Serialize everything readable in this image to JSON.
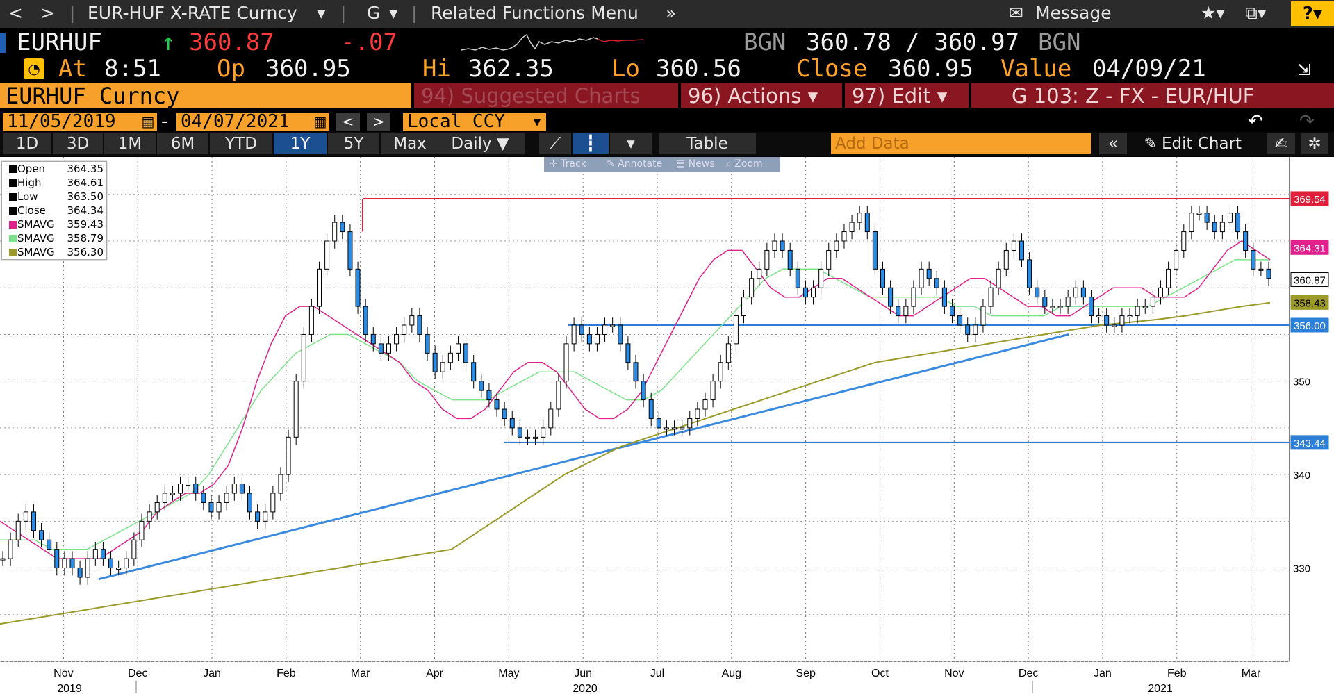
{
  "nav": {
    "back": "<",
    "forward": ">",
    "security_menu": "EUR-HUF X-RATE Curncy",
    "function": "G",
    "related": "Related Functions Menu",
    "message": "Message",
    "help": "?"
  },
  "quote": {
    "ticker": "EURHUF",
    "last": "360.87",
    "change": "-.07",
    "bid_src": "BGN",
    "bid_ask": "360.78 / 360.97",
    "ask_src": "BGN",
    "at_label": "At",
    "time": "8:51",
    "op_label": "Op",
    "open": "360.95",
    "hi_label": "Hi",
    "high": "362.35",
    "lo_label": "Lo",
    "low": "360.56",
    "close_label": "Close",
    "close": "360.95",
    "value_label": "Value",
    "value_date": "04/09/21"
  },
  "toolbar": {
    "security": "EURHUF Curncy",
    "suggested": "94) Suggested Charts",
    "actions": "96) Actions ▾",
    "edit": "97) Edit ▾",
    "chart_title": "G 103: Z - FX - EUR/HUF"
  },
  "dates": {
    "start": "11/05/2019",
    "dash": "-",
    "end": "04/07/2021",
    "currency": "Local CCY"
  },
  "periods": [
    "1D",
    "3D",
    "1M",
    "6M",
    "YTD",
    "1Y",
    "5Y",
    "Max"
  ],
  "selected_period": "1Y",
  "frequency": "Daily ▼",
  "table_label": "Table",
  "add_data_placeholder": "Add Data",
  "edit_chart": "Edit Chart",
  "tools": [
    "Track",
    "Annotate",
    "News",
    "Zoom"
  ],
  "legend": [
    {
      "label": "Open",
      "value": "364.35",
      "color": "#000000"
    },
    {
      "label": "High",
      "value": "364.61",
      "color": "#000000"
    },
    {
      "label": "Low",
      "value": "363.50",
      "color": "#000000"
    },
    {
      "label": "Close",
      "value": "364.34",
      "color": "#000000"
    },
    {
      "label": "SMAVG",
      "value": "359.43",
      "color": "#e0208c"
    },
    {
      "label": "SMAVG",
      "value": "358.79",
      "color": "#7de38a"
    },
    {
      "label": "SMAVG",
      "value": "356.30",
      "color": "#9b9a2a"
    }
  ],
  "chart_data": {
    "type": "line",
    "ylim": [
      320,
      374
    ],
    "y_ticks": [
      330,
      340,
      350
    ],
    "x_months": [
      "Nov",
      "Dec",
      "Jan",
      "Feb",
      "Mar",
      "Apr",
      "May",
      "Jun",
      "Jul",
      "Aug",
      "Sep",
      "Oct",
      "Nov",
      "Dec",
      "Jan",
      "Feb",
      "Mar"
    ],
    "x_years": [
      "2019",
      "2020",
      "2021"
    ],
    "right_labels": [
      {
        "value": 369.54,
        "text": "369.54",
        "color": "#e0203a"
      },
      {
        "value": 364.31,
        "text": "364.31",
        "color": "#e0208c"
      },
      {
        "value": 360.87,
        "text": "360.87",
        "color": "#000000"
      },
      {
        "value": 358.43,
        "text": "358.43",
        "color": "#9b9a2a"
      },
      {
        "value": 356.0,
        "text": "356.00",
        "color": "#2b7fd6"
      },
      {
        "value": 343.44,
        "text": "343.44",
        "color": "#2b7fd6"
      }
    ],
    "price_series": [
      331,
      333,
      335,
      336,
      334,
      333,
      332,
      330,
      331,
      330,
      329,
      331,
      332,
      331,
      330,
      330,
      331,
      333,
      335,
      336,
      337,
      338,
      338,
      339,
      339,
      338,
      337,
      336,
      337,
      338,
      339,
      338,
      336,
      335,
      336,
      338,
      340,
      344,
      350,
      355,
      358,
      362,
      365,
      367,
      366,
      362,
      358,
      355,
      354,
      353,
      354,
      355,
      356,
      357,
      355,
      353,
      351,
      352,
      353,
      354,
      352,
      350,
      349,
      348,
      347,
      346,
      345,
      344,
      344,
      344,
      345,
      347,
      350,
      354,
      356,
      355,
      354,
      355,
      356,
      356,
      354,
      352,
      350,
      348,
      346,
      345,
      345,
      345,
      345,
      346,
      347,
      348,
      350,
      352,
      354,
      357,
      359,
      361,
      362,
      364,
      365,
      364,
      362,
      360,
      359,
      360,
      362,
      364,
      365,
      366,
      367,
      368,
      366,
      362,
      360,
      358,
      357,
      358,
      360,
      362,
      361,
      360,
      358,
      357,
      356,
      355,
      356,
      358,
      360,
      362,
      364,
      365,
      363,
      360,
      359,
      358,
      358,
      358,
      359,
      360,
      359,
      357,
      357,
      356,
      356,
      357,
      357,
      358,
      358,
      359,
      360,
      362,
      364,
      366,
      368,
      368,
      367,
      366,
      367,
      368,
      366,
      364,
      362,
      362,
      361
    ],
    "smavg_pink": [
      335,
      334,
      333,
      332,
      331,
      331,
      331,
      331,
      332,
      333,
      334,
      336,
      337,
      338,
      338,
      339,
      341,
      345,
      350,
      354,
      357,
      358,
      358,
      357,
      356,
      355,
      354,
      353,
      352,
      350,
      349,
      347,
      346,
      346,
      347,
      349,
      351,
      352,
      352,
      351,
      349,
      347,
      346,
      346,
      347,
      349,
      352,
      355,
      358,
      361,
      363,
      364,
      364,
      362,
      360,
      359,
      359,
      360,
      361,
      361,
      360,
      359,
      358,
      357,
      357,
      358,
      359,
      360,
      361,
      361,
      360,
      359,
      358,
      358,
      357,
      357,
      358,
      359,
      360,
      360,
      360,
      359,
      359,
      359,
      360,
      362,
      364,
      365,
      364,
      363
    ],
    "smavg_green": [
      333,
      333,
      333,
      332,
      332,
      332,
      333,
      334,
      335,
      336,
      337,
      338,
      340,
      343,
      346,
      349,
      351,
      353,
      354,
      355,
      355,
      354,
      353,
      352,
      350,
      349,
      348,
      348,
      348,
      349,
      350,
      351,
      351,
      351,
      350,
      349,
      348,
      348,
      349,
      351,
      353,
      355,
      357,
      359,
      361,
      362,
      362,
      362,
      361,
      360,
      359,
      359,
      359,
      359,
      359,
      358,
      358,
      357,
      357,
      357,
      357,
      358,
      358,
      358,
      358,
      358,
      358,
      359,
      360,
      361,
      362,
      363,
      363,
      363
    ],
    "smavg_olive": [
      324,
      324.5,
      325,
      325.5,
      326,
      326.5,
      327,
      327.5,
      328,
      328.5,
      329,
      329.5,
      330,
      330.5,
      331,
      331.5,
      332,
      334,
      336,
      338,
      340,
      341.5,
      343,
      344,
      345,
      346,
      347,
      348,
      349,
      350,
      351,
      352,
      352.5,
      353,
      353.5,
      354,
      354.5,
      355,
      355.5,
      356,
      356.3,
      356.6,
      357,
      357.5,
      358,
      358.4
    ]
  }
}
